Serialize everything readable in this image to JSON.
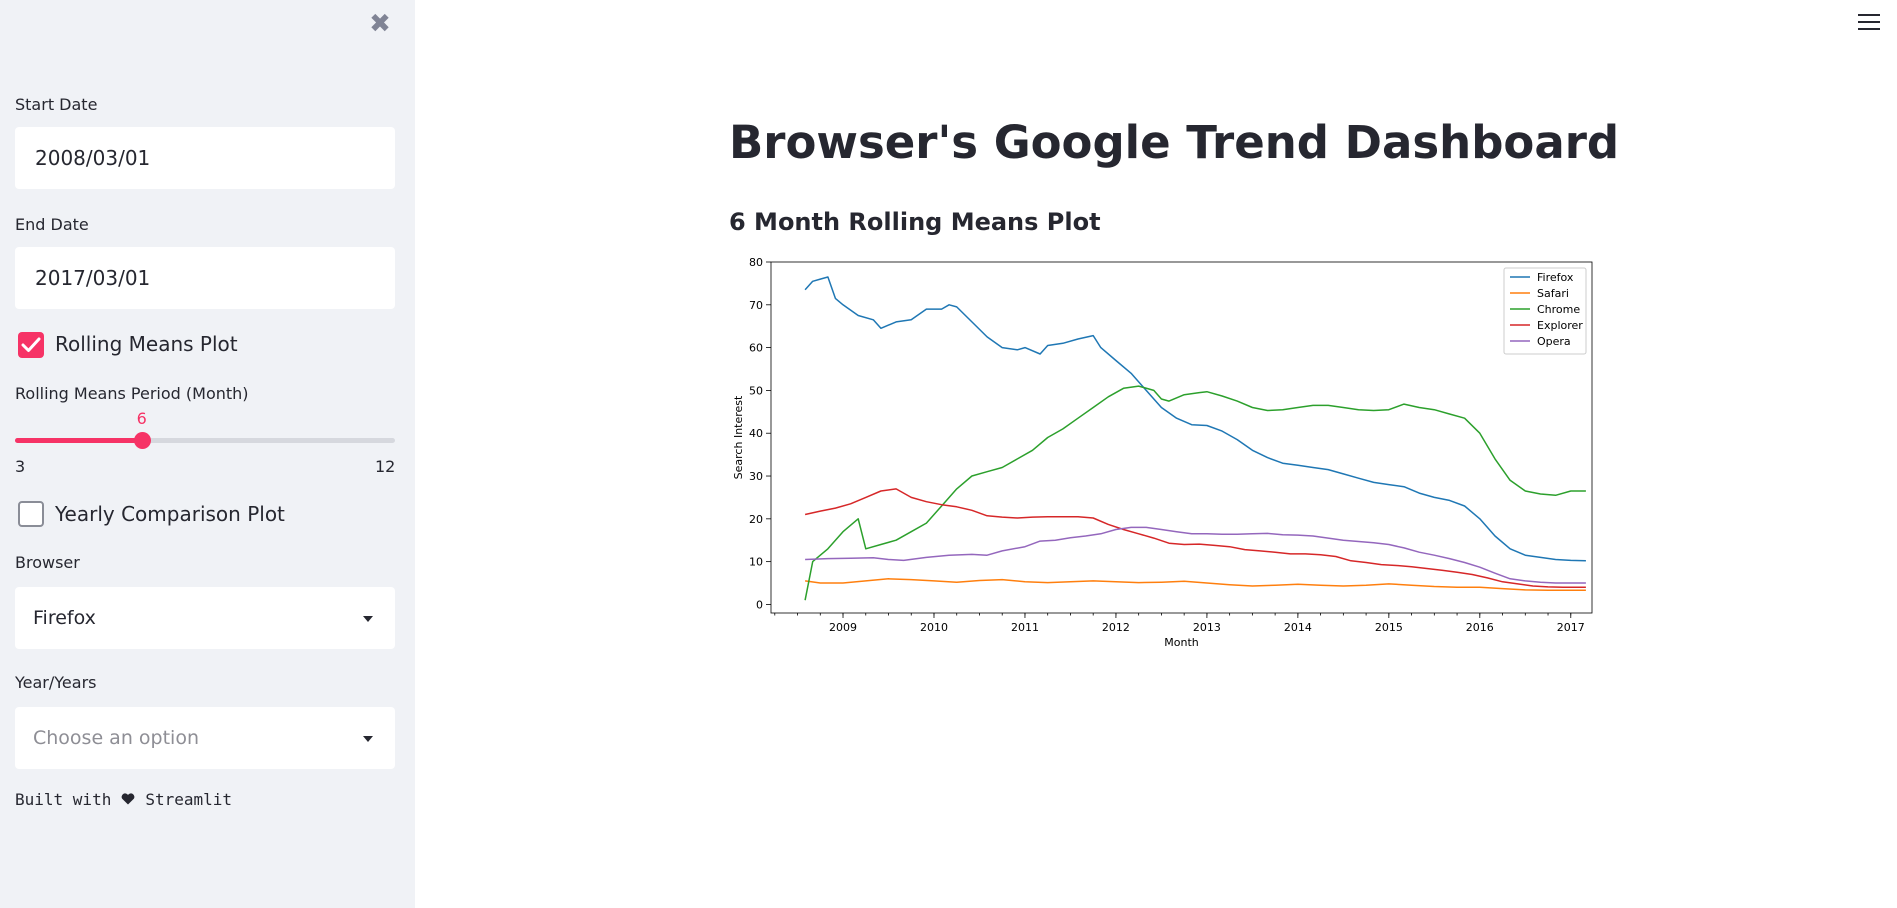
{
  "sidebar": {
    "start_date": {
      "label": "Start Date",
      "value": "2008/03/01"
    },
    "end_date": {
      "label": "End Date",
      "value": "2017/03/01"
    },
    "rolling_checkbox": {
      "label": "Rolling Means Plot",
      "checked": true
    },
    "period_slider": {
      "label": "Rolling Means Period (Month)",
      "value": 6,
      "value_text": "6",
      "min": 3,
      "max": 12,
      "min_text": "3",
      "max_text": "12"
    },
    "yearly_checkbox": {
      "label": "Yearly Comparison Plot",
      "checked": false
    },
    "browser_select": {
      "label": "Browser",
      "value": "Firefox"
    },
    "years_select": {
      "label": "Year/Years",
      "placeholder": "Choose an option"
    },
    "footer": {
      "built_with": "Built with",
      "brand": "Streamlit"
    }
  },
  "main": {
    "title": "Browser's Google Trend Dashboard",
    "subheader": "6 Month Rolling Means Plot"
  },
  "colors": {
    "accent": "#f63366",
    "sidebar_bg": "#f0f2f6"
  },
  "chart_data": {
    "type": "line",
    "title": "",
    "xlabel": "Month",
    "ylabel": "Search Interest",
    "x_ticks": [
      "2009",
      "2010",
      "2011",
      "2012",
      "2013",
      "2014",
      "2015",
      "2016",
      "2017"
    ],
    "y_ticks": [
      "0",
      "10",
      "20",
      "30",
      "40",
      "50",
      "60",
      "70",
      "80"
    ],
    "xlim": [
      "2008-03",
      "2017-03"
    ],
    "ylim": [
      -2,
      80
    ],
    "legend": "top-right",
    "series": [
      {
        "name": "Firefox",
        "color": "#1f77b4",
        "points": [
          [
            "2008-08",
            73.5
          ],
          [
            "2008-09",
            75.5
          ],
          [
            "2008-10",
            76
          ],
          [
            "2008-11",
            76.5
          ],
          [
            "2008-12",
            71.5
          ],
          [
            "2009-01",
            70
          ],
          [
            "2009-03",
            67.5
          ],
          [
            "2009-05",
            66.5
          ],
          [
            "2009-06",
            64.5
          ],
          [
            "2009-08",
            66
          ],
          [
            "2009-10",
            66.5
          ],
          [
            "2009-12",
            69
          ],
          [
            "2010-02",
            69
          ],
          [
            "2010-03",
            70
          ],
          [
            "2010-04",
            69.5
          ],
          [
            "2010-06",
            66
          ],
          [
            "2010-08",
            62.5
          ],
          [
            "2010-10",
            60
          ],
          [
            "2010-12",
            59.5
          ],
          [
            "2011-01",
            60
          ],
          [
            "2011-03",
            58.5
          ],
          [
            "2011-04",
            60.5
          ],
          [
            "2011-06",
            61
          ],
          [
            "2011-08",
            62
          ],
          [
            "2011-10",
            62.8
          ],
          [
            "2011-11",
            60
          ],
          [
            "2012-01",
            57
          ],
          [
            "2012-03",
            54
          ],
          [
            "2012-05",
            50
          ],
          [
            "2012-07",
            46
          ],
          [
            "2012-09",
            43.5
          ],
          [
            "2012-11",
            42
          ],
          [
            "2013-01",
            41.8
          ],
          [
            "2013-03",
            40.5
          ],
          [
            "2013-05",
            38.5
          ],
          [
            "2013-07",
            36
          ],
          [
            "2013-09",
            34.3
          ],
          [
            "2013-11",
            33
          ],
          [
            "2014-01",
            32.5
          ],
          [
            "2014-03",
            32
          ],
          [
            "2014-05",
            31.5
          ],
          [
            "2014-07",
            30.5
          ],
          [
            "2014-09",
            29.5
          ],
          [
            "2014-11",
            28.5
          ],
          [
            "2015-01",
            28
          ],
          [
            "2015-03",
            27.5
          ],
          [
            "2015-05",
            26
          ],
          [
            "2015-07",
            25
          ],
          [
            "2015-09",
            24.3
          ],
          [
            "2015-11",
            23
          ],
          [
            "2016-01",
            20
          ],
          [
            "2016-03",
            16
          ],
          [
            "2016-05",
            13
          ],
          [
            "2016-07",
            11.5
          ],
          [
            "2016-09",
            11
          ],
          [
            "2016-11",
            10.5
          ],
          [
            "2017-01",
            10.3
          ],
          [
            "2017-03",
            10.2
          ]
        ]
      },
      {
        "name": "Safari",
        "color": "#ff7f0e",
        "points": [
          [
            "2008-08",
            5.5
          ],
          [
            "2008-10",
            5
          ],
          [
            "2009-01",
            5
          ],
          [
            "2009-04",
            5.5
          ],
          [
            "2009-07",
            6
          ],
          [
            "2009-10",
            5.8
          ],
          [
            "2010-01",
            5.5
          ],
          [
            "2010-04",
            5.2
          ],
          [
            "2010-07",
            5.6
          ],
          [
            "2010-10",
            5.8
          ],
          [
            "2011-01",
            5.3
          ],
          [
            "2011-04",
            5.1
          ],
          [
            "2011-07",
            5.3
          ],
          [
            "2011-10",
            5.5
          ],
          [
            "2012-01",
            5.3
          ],
          [
            "2012-04",
            5.1
          ],
          [
            "2012-07",
            5.2
          ],
          [
            "2012-10",
            5.4
          ],
          [
            "2013-01",
            5
          ],
          [
            "2013-04",
            4.6
          ],
          [
            "2013-07",
            4.3
          ],
          [
            "2013-10",
            4.5
          ],
          [
            "2014-01",
            4.7
          ],
          [
            "2014-04",
            4.5
          ],
          [
            "2014-07",
            4.3
          ],
          [
            "2014-10",
            4.5
          ],
          [
            "2015-01",
            4.8
          ],
          [
            "2015-04",
            4.5
          ],
          [
            "2015-07",
            4.2
          ],
          [
            "2015-10",
            4
          ],
          [
            "2016-01",
            4
          ],
          [
            "2016-04",
            3.7
          ],
          [
            "2016-07",
            3.4
          ],
          [
            "2016-10",
            3.3
          ],
          [
            "2017-03",
            3.3
          ]
        ]
      },
      {
        "name": "Chrome",
        "color": "#2ca02c",
        "points": [
          [
            "2008-08",
            1
          ],
          [
            "2008-09",
            10
          ],
          [
            "2008-11",
            13
          ],
          [
            "2009-01",
            17
          ],
          [
            "2009-03",
            20
          ],
          [
            "2009-04",
            13
          ],
          [
            "2009-06",
            14
          ],
          [
            "2009-08",
            15
          ],
          [
            "2009-10",
            17
          ],
          [
            "2009-12",
            19
          ],
          [
            "2010-02",
            23
          ],
          [
            "2010-04",
            27
          ],
          [
            "2010-06",
            30
          ],
          [
            "2010-08",
            31
          ],
          [
            "2010-10",
            32
          ],
          [
            "2010-12",
            34
          ],
          [
            "2011-02",
            36
          ],
          [
            "2011-04",
            39
          ],
          [
            "2011-06",
            41
          ],
          [
            "2011-08",
            43.5
          ],
          [
            "2011-10",
            46
          ],
          [
            "2011-12",
            48.5
          ],
          [
            "2012-02",
            50.5
          ],
          [
            "2012-04",
            51
          ],
          [
            "2012-06",
            50
          ],
          [
            "2012-07",
            48
          ],
          [
            "2012-08",
            47.5
          ],
          [
            "2012-10",
            49
          ],
          [
            "2012-12",
            49.5
          ],
          [
            "2013-01",
            49.7
          ],
          [
            "2013-03",
            48.7
          ],
          [
            "2013-05",
            47.5
          ],
          [
            "2013-07",
            46
          ],
          [
            "2013-09",
            45.3
          ],
          [
            "2013-11",
            45.5
          ],
          [
            "2014-01",
            46
          ],
          [
            "2014-03",
            46.5
          ],
          [
            "2014-05",
            46.5
          ],
          [
            "2014-07",
            46
          ],
          [
            "2014-09",
            45.5
          ],
          [
            "2014-11",
            45.3
          ],
          [
            "2015-01",
            45.5
          ],
          [
            "2015-03",
            46.8
          ],
          [
            "2015-05",
            46
          ],
          [
            "2015-07",
            45.5
          ],
          [
            "2015-09",
            44.5
          ],
          [
            "2015-11",
            43.5
          ],
          [
            "2016-01",
            40
          ],
          [
            "2016-03",
            34
          ],
          [
            "2016-05",
            29
          ],
          [
            "2016-07",
            26.5
          ],
          [
            "2016-09",
            25.8
          ],
          [
            "2016-11",
            25.5
          ],
          [
            "2017-01",
            26.5
          ],
          [
            "2017-03",
            26.5
          ]
        ]
      },
      {
        "name": "Explorer",
        "color": "#d62728",
        "points": [
          [
            "2008-08",
            21
          ],
          [
            "2008-10",
            21.8
          ],
          [
            "2008-12",
            22.5
          ],
          [
            "2009-02",
            23.5
          ],
          [
            "2009-04",
            25
          ],
          [
            "2009-06",
            26.5
          ],
          [
            "2009-08",
            27
          ],
          [
            "2009-10",
            25
          ],
          [
            "2009-12",
            24
          ],
          [
            "2010-02",
            23.3
          ],
          [
            "2010-04",
            22.8
          ],
          [
            "2010-06",
            22
          ],
          [
            "2010-08",
            20.7
          ],
          [
            "2010-10",
            20.4
          ],
          [
            "2010-12",
            20.2
          ],
          [
            "2011-02",
            20.4
          ],
          [
            "2011-04",
            20.5
          ],
          [
            "2011-06",
            20.5
          ],
          [
            "2011-08",
            20.5
          ],
          [
            "2011-10",
            20.2
          ],
          [
            "2011-12",
            18.7
          ],
          [
            "2012-02",
            17.5
          ],
          [
            "2012-04",
            16.5
          ],
          [
            "2012-06",
            15.5
          ],
          [
            "2012-08",
            14.3
          ],
          [
            "2012-10",
            14
          ],
          [
            "2012-12",
            14.1
          ],
          [
            "2013-02",
            13.8
          ],
          [
            "2013-04",
            13.5
          ],
          [
            "2013-06",
            12.8
          ],
          [
            "2013-08",
            12.5
          ],
          [
            "2013-10",
            12.2
          ],
          [
            "2013-12",
            11.8
          ],
          [
            "2014-02",
            11.8
          ],
          [
            "2014-04",
            11.6
          ],
          [
            "2014-06",
            11.2
          ],
          [
            "2014-08",
            10.2
          ],
          [
            "2014-10",
            9.8
          ],
          [
            "2014-12",
            9.3
          ],
          [
            "2015-02",
            9.1
          ],
          [
            "2015-04",
            8.8
          ],
          [
            "2015-06",
            8.4
          ],
          [
            "2015-08",
            8
          ],
          [
            "2015-10",
            7.5
          ],
          [
            "2015-12",
            7
          ],
          [
            "2016-02",
            6.2
          ],
          [
            "2016-04",
            5.3
          ],
          [
            "2016-06",
            4.8
          ],
          [
            "2016-08",
            4.3
          ],
          [
            "2016-10",
            4.1
          ],
          [
            "2016-12",
            4
          ],
          [
            "2017-03",
            4
          ]
        ]
      },
      {
        "name": "Opera",
        "color": "#9467bd",
        "points": [
          [
            "2008-08",
            10.5
          ],
          [
            "2008-11",
            10.7
          ],
          [
            "2009-02",
            10.8
          ],
          [
            "2009-05",
            10.9
          ],
          [
            "2009-07",
            10.5
          ],
          [
            "2009-09",
            10.3
          ],
          [
            "2009-12",
            11
          ],
          [
            "2010-03",
            11.5
          ],
          [
            "2010-06",
            11.7
          ],
          [
            "2010-08",
            11.5
          ],
          [
            "2010-10",
            12.5
          ],
          [
            "2011-01",
            13.5
          ],
          [
            "2011-03",
            14.8
          ],
          [
            "2011-05",
            15
          ],
          [
            "2011-07",
            15.6
          ],
          [
            "2011-09",
            16
          ],
          [
            "2011-11",
            16.5
          ],
          [
            "2012-01",
            17.5
          ],
          [
            "2012-03",
            18
          ],
          [
            "2012-05",
            18
          ],
          [
            "2012-07",
            17.5
          ],
          [
            "2012-09",
            17
          ],
          [
            "2012-11",
            16.5
          ],
          [
            "2013-01",
            16.5
          ],
          [
            "2013-03",
            16.4
          ],
          [
            "2013-05",
            16.4
          ],
          [
            "2013-07",
            16.5
          ],
          [
            "2013-09",
            16.6
          ],
          [
            "2013-11",
            16.3
          ],
          [
            "2014-01",
            16.2
          ],
          [
            "2014-03",
            16
          ],
          [
            "2014-05",
            15.5
          ],
          [
            "2014-07",
            15
          ],
          [
            "2014-09",
            14.7
          ],
          [
            "2014-11",
            14.4
          ],
          [
            "2015-01",
            14
          ],
          [
            "2015-03",
            13.2
          ],
          [
            "2015-05",
            12.2
          ],
          [
            "2015-07",
            11.5
          ],
          [
            "2015-09",
            10.7
          ],
          [
            "2015-11",
            9.8
          ],
          [
            "2016-01",
            8.7
          ],
          [
            "2016-03",
            7.3
          ],
          [
            "2016-05",
            6
          ],
          [
            "2016-07",
            5.5
          ],
          [
            "2016-09",
            5.2
          ],
          [
            "2016-11",
            5
          ],
          [
            "2017-01",
            5
          ],
          [
            "2017-03",
            5
          ]
        ]
      }
    ]
  }
}
